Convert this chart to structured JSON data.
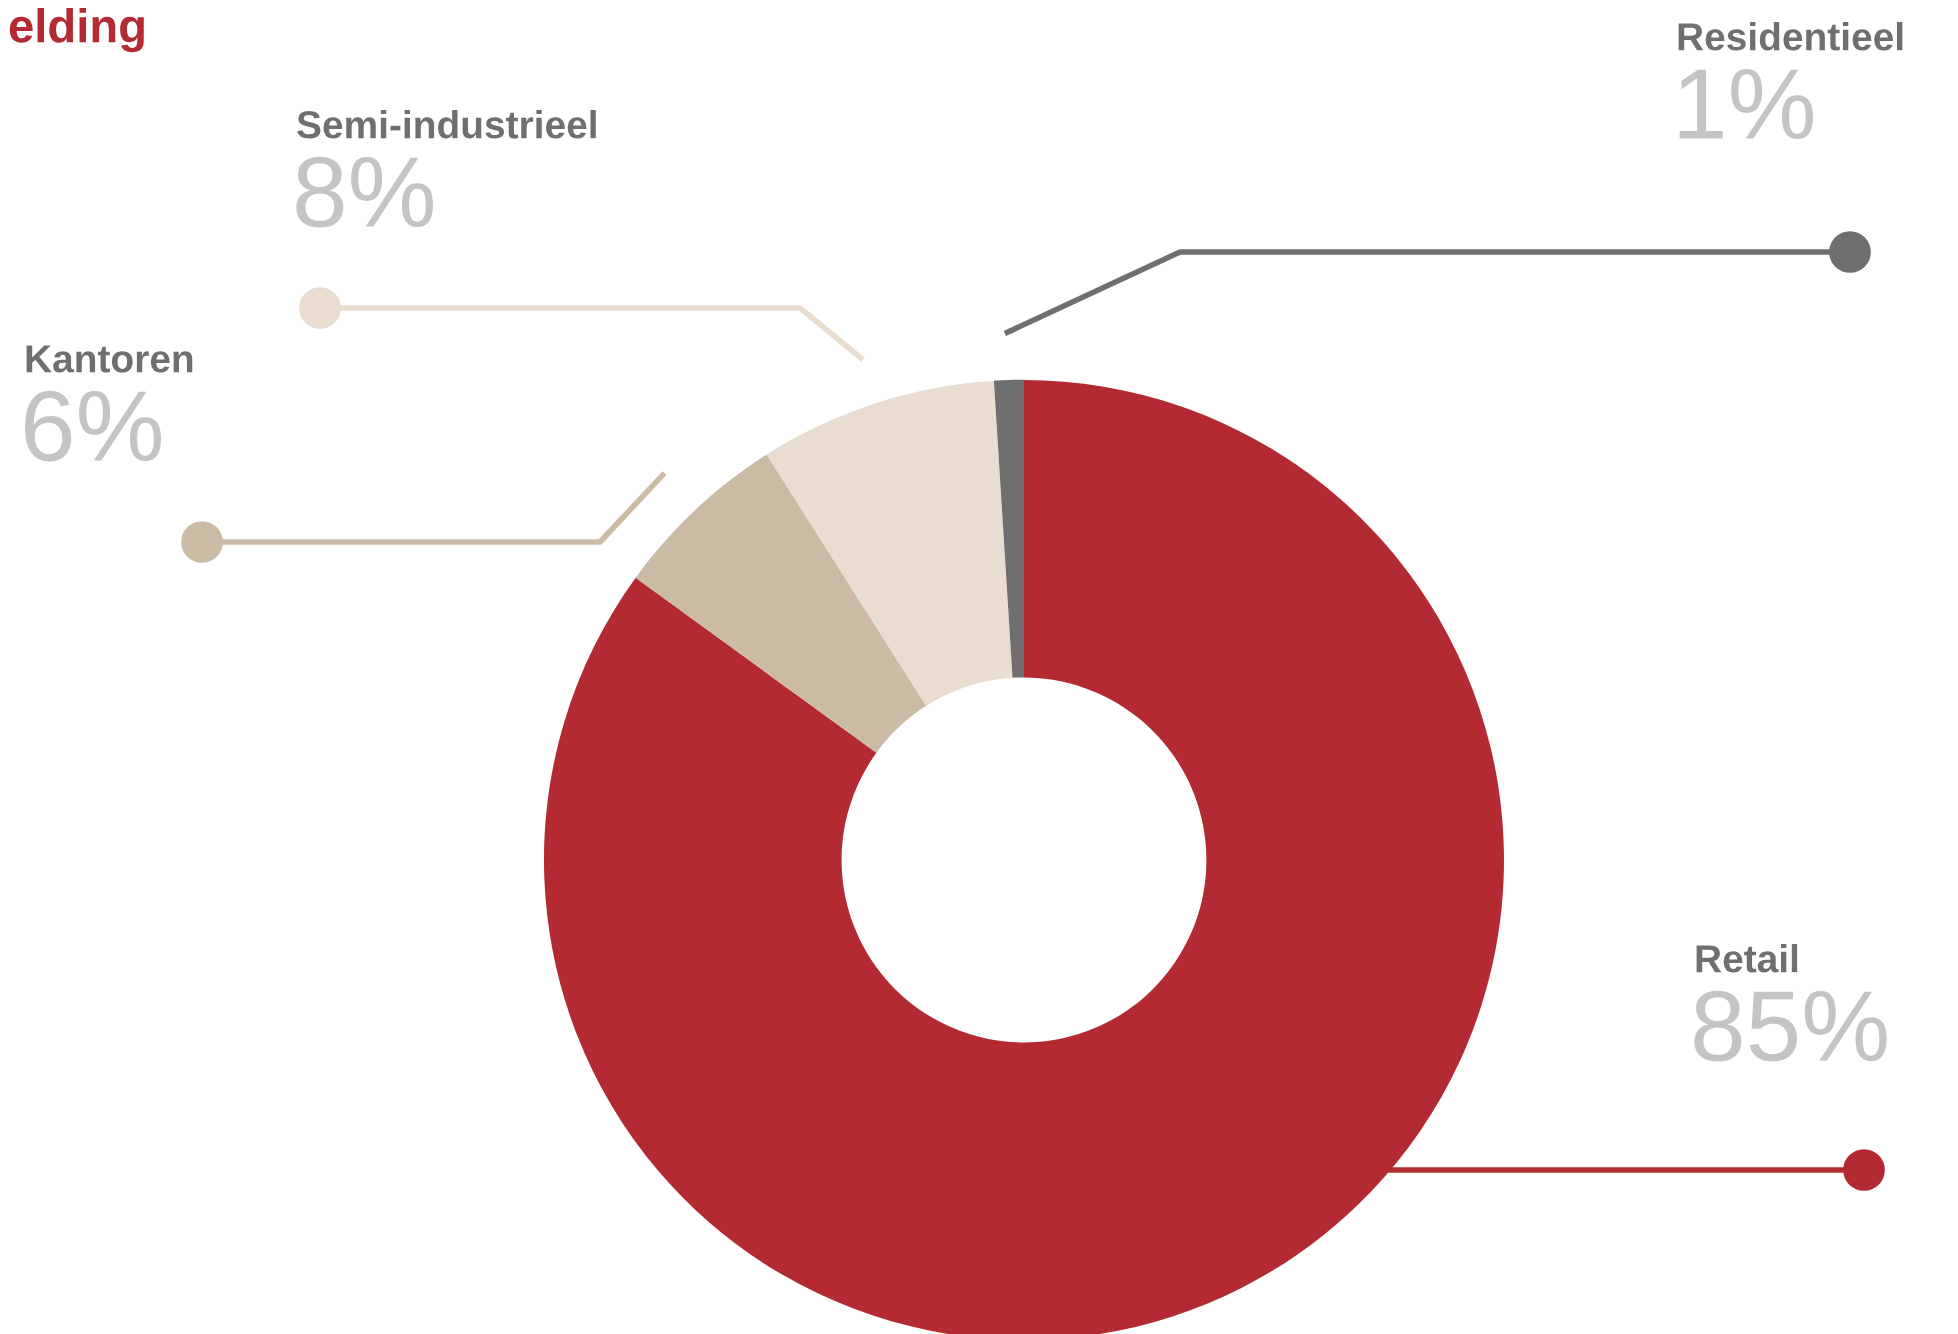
{
  "chart_data": {
    "type": "donut",
    "title": "elding",
    "categories": [
      "Retail",
      "Kantoren",
      "Semi-industrieel",
      "Residentieel"
    ],
    "values": [
      85,
      6,
      8,
      1
    ],
    "value_labels": [
      "85%",
      "6%",
      "8%",
      "1%"
    ],
    "colors": [
      "#b32a33",
      "#cbbaa4",
      "#e8ddd0",
      "#6f6f6f"
    ]
  }
}
